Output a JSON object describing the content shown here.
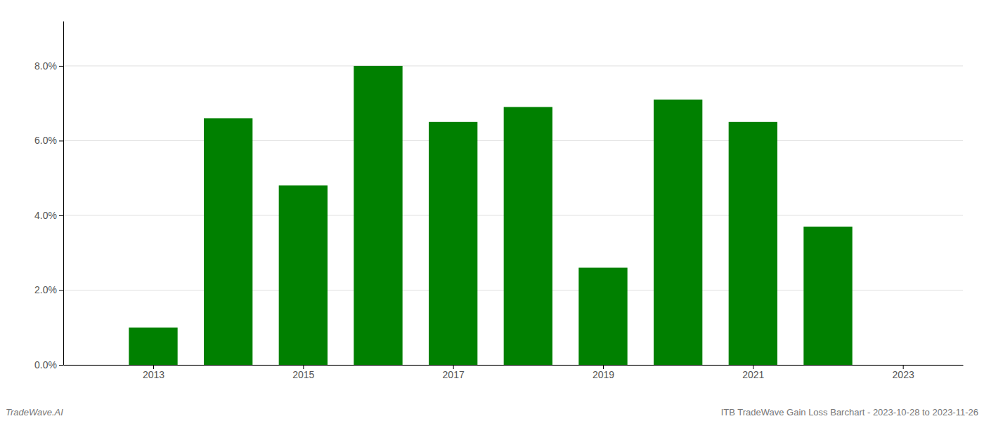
{
  "chart_data": {
    "type": "bar",
    "x": [
      2013,
      2014,
      2015,
      2016,
      2017,
      2018,
      2019,
      2020,
      2021,
      2022
    ],
    "values": [
      0.01,
      0.066,
      0.048,
      0.08,
      0.065,
      0.069,
      0.026,
      0.071,
      0.065,
      0.037
    ],
    "color": "#008000",
    "xlim": [
      2011.8,
      2023.8
    ],
    "xticks": [
      2013,
      2015,
      2017,
      2019,
      2021,
      2023
    ],
    "ylim": [
      0,
      0.092
    ],
    "yticks": [
      {
        "value": 0.0,
        "label": "0.0%"
      },
      {
        "value": 0.02,
        "label": "2.0%"
      },
      {
        "value": 0.04,
        "label": "4.0%"
      },
      {
        "value": 0.06,
        "label": "6.0%"
      },
      {
        "value": 0.08,
        "label": "8.0%"
      }
    ],
    "grid": true,
    "annotations": [
      "TradeWave.AI",
      "ITB TradeWave Gain Loss Barchart - 2023-10-28 to 2023-11-26"
    ]
  }
}
